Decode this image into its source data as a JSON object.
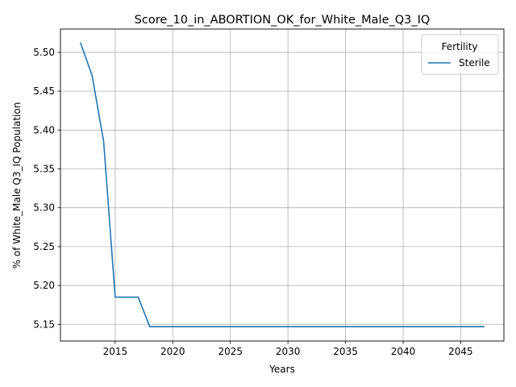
{
  "chart_data": {
    "type": "line",
    "title": "Score_10_in_ABORTION_OK_for_White_Male_Q3_IQ",
    "xlabel": "Years",
    "ylabel": "% of White_Male Q3_IQ Population",
    "xlim": [
      2010.25,
      2048.75
    ],
    "ylim": [
      5.1285,
      5.53
    ],
    "xticks": [
      2015,
      2020,
      2025,
      2030,
      2035,
      2040,
      2045
    ],
    "yticks": [
      5.15,
      5.2,
      5.25,
      5.3,
      5.35,
      5.4,
      5.45,
      5.5
    ],
    "xtick_labels": [
      "2015",
      "2020",
      "2025",
      "2030",
      "2035",
      "2040",
      "2045"
    ],
    "ytick_labels": [
      "5.15",
      "5.20",
      "5.25",
      "5.30",
      "5.35",
      "5.40",
      "5.45",
      "5.50"
    ],
    "grid": true,
    "legend": {
      "title": "Fertility",
      "placement": "top-right"
    },
    "series": [
      {
        "name": "Sterile",
        "color": "#1f77b4",
        "x": [
          2012,
          2013,
          2014,
          2015,
          2016,
          2017,
          2018,
          2019,
          2020,
          2021,
          2022,
          2023,
          2024,
          2025,
          2026,
          2027,
          2028,
          2029,
          2030,
          2031,
          2032,
          2033,
          2034,
          2035,
          2036,
          2037,
          2038,
          2039,
          2040,
          2041,
          2042,
          2043,
          2044,
          2045,
          2046,
          2047
        ],
        "y": [
          5.512,
          5.47,
          5.385,
          5.185,
          5.185,
          5.185,
          5.147,
          5.147,
          5.147,
          5.147,
          5.147,
          5.147,
          5.147,
          5.147,
          5.147,
          5.147,
          5.147,
          5.147,
          5.147,
          5.147,
          5.147,
          5.147,
          5.147,
          5.147,
          5.147,
          5.147,
          5.147,
          5.147,
          5.147,
          5.147,
          5.147,
          5.147,
          5.147,
          5.147,
          5.147,
          5.147
        ]
      }
    ]
  }
}
